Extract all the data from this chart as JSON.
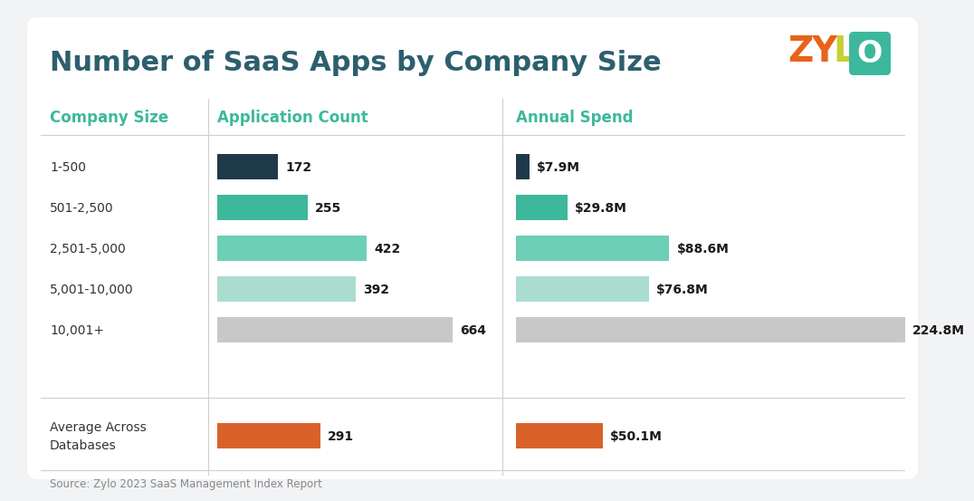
{
  "title": "Number of SaaS Apps by Company Size",
  "subtitle_col1": "Company Size",
  "subtitle_col2": "Application Count",
  "subtitle_col3": "Annual Spend",
  "source": "Source: Zylo 2023 SaaS Management Index Report",
  "categories": [
    "1-500",
    "501-2,500",
    "2,501-5,000",
    "5,001-10,000",
    "10,001+"
  ],
  "avg_category": "Average Across\nDatabases",
  "app_values": [
    172,
    255,
    422,
    392,
    664
  ],
  "spend_values": [
    7.9,
    29.8,
    88.6,
    76.8,
    224.8
  ],
  "spend_labels": [
    "$7.9M",
    "$29.8M",
    "$88.6M",
    "$76.8M",
    "224.8M"
  ],
  "avg_app": 291,
  "avg_spend": 50.1,
  "avg_spend_label": "$50.1M",
  "app_colors": [
    "#1e3a4a",
    "#3db89c",
    "#6dcfb5",
    "#aaddd0",
    "#c8c8c8"
  ],
  "avg_color": "#d9622b",
  "bg_color": "#f2f3f5",
  "card_color": "#ffffff",
  "header_color": "#3db89c",
  "title_color": "#2d5f6e",
  "label_color": "#333333",
  "value_color": "#1a1a1a",
  "source_color": "#888888",
  "sep_color": "#d0d0d0",
  "bar_max_app": 664,
  "bar_max_spend": 224.8,
  "zylo_Z_color": "#e8631a",
  "zylo_Y_color": "#e8631a",
  "zylo_L_color": "#8dc63f",
  "zylo_O_bg": "#3db89c",
  "zylo_O_color": "#ffffff"
}
